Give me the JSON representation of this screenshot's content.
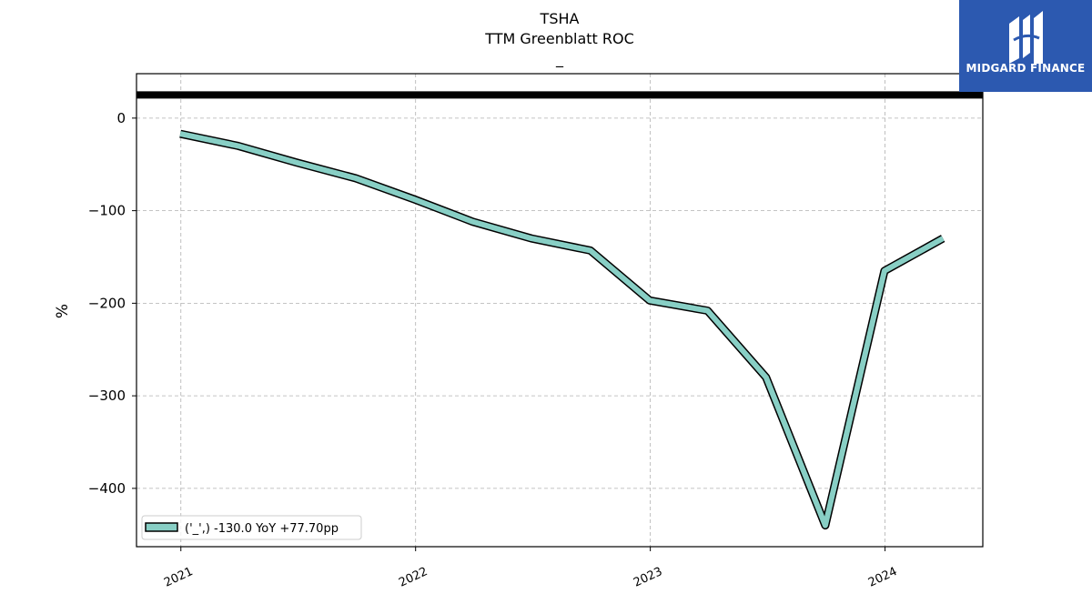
{
  "chart_data": {
    "type": "line",
    "title": "TSHA",
    "subtitle": "TTM Greenblatt ROC",
    "subtitle2": "_",
    "ylabel": "%",
    "xlabel": "",
    "ylim": [
      -463,
      48
    ],
    "xlim": [
      "2020-10-24",
      "2024-06-01"
    ],
    "yticks": [
      0,
      -100,
      -200,
      -300,
      -400
    ],
    "ytick_labels": [
      "0",
      "−100",
      "−200",
      "−300",
      "−400"
    ],
    "xticks": [
      "2021-01-01",
      "2022-01-01",
      "2023-01-01",
      "2024-01-01"
    ],
    "xtick_labels": [
      "2021",
      "2022",
      "2023",
      "2024"
    ],
    "grid": true,
    "legend_position": "lower-left",
    "reference_line": {
      "y": 25,
      "color": "#000000"
    },
    "series": [
      {
        "name": "('_',) -130.0 YoY +77.70pp",
        "color": "#88cfc5",
        "outline": "#000000",
        "x": [
          "2020-12-31",
          "2021-03-31",
          "2021-06-30",
          "2021-09-30",
          "2021-12-31",
          "2022-03-31",
          "2022-06-30",
          "2022-09-30",
          "2022-12-31",
          "2023-03-31",
          "2023-06-30",
          "2023-09-30",
          "2023-12-31",
          "2024-03-31"
        ],
        "y": [
          -17,
          -30,
          -48,
          -65,
          -88,
          -112,
          -130,
          -143,
          -197,
          -208,
          -280,
          -440,
          -165,
          -130
        ]
      }
    ]
  },
  "logo": {
    "text": "MIDGARD FINANCE",
    "bg_color": "#2c59b0",
    "fg_color": "#ffffff"
  }
}
